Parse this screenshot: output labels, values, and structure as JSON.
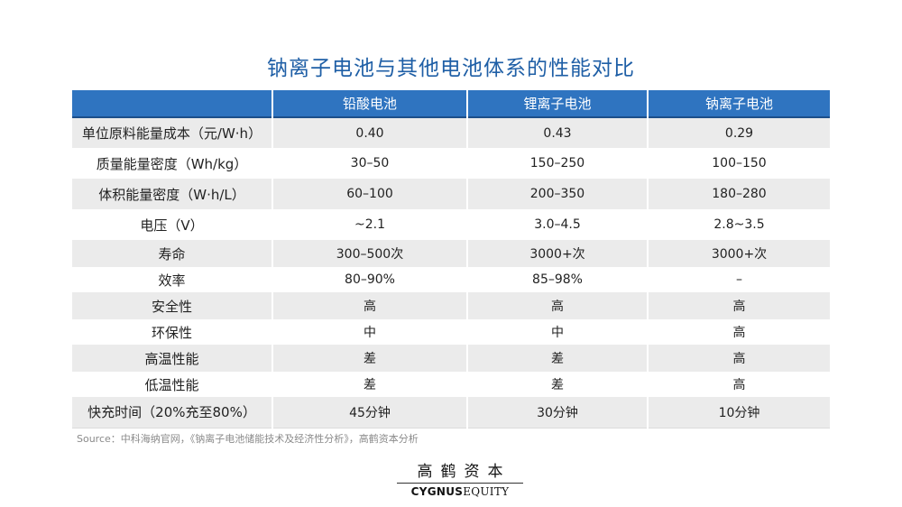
{
  "title": "钠离子电池与其他电池体系的性能对比",
  "table": {
    "headers": [
      "",
      "铅酸电池",
      "锂离子电池",
      "钠离子电池"
    ],
    "rows": [
      [
        "单位原料能量成本（元/W·h）",
        "0.40",
        "0.43",
        "0.29"
      ],
      [
        "质量能量密度（Wh/kg）",
        "30–50",
        "150–250",
        "100–150"
      ],
      [
        "体积能量密度（W·h/L）",
        "60–100",
        "200–350",
        "180–280"
      ],
      [
        "电压（V）",
        "~2.1",
        "3.0–4.5",
        "2.8~3.5"
      ],
      [
        "寿命",
        "300–500次",
        "3000+次",
        "3000+次"
      ],
      [
        "效率",
        "80–90%",
        "85–98%",
        "–"
      ],
      [
        "安全性",
        "高",
        "高",
        "高"
      ],
      [
        "环保性",
        "中",
        "中",
        "高"
      ],
      [
        "高温性能",
        "差",
        "差",
        "高"
      ],
      [
        "低温性能",
        "差",
        "差",
        "高"
      ],
      [
        "快充时间（20%充至80%）",
        "45分钟",
        "30分钟",
        "10分钟"
      ]
    ]
  },
  "source": "Source：中科海纳官网，《钠离子电池储能技术及经济性分析》，高鹤资本分析",
  "logo": {
    "cn": "高鹤资本",
    "en_bold": "CYGNUS",
    "en_rest": "EQUITY"
  },
  "colors": {
    "title": "#1f5fa6",
    "header_bg": "#2f74c0",
    "stripe": "#ebebeb",
    "source_text": "#8a8a8a"
  }
}
